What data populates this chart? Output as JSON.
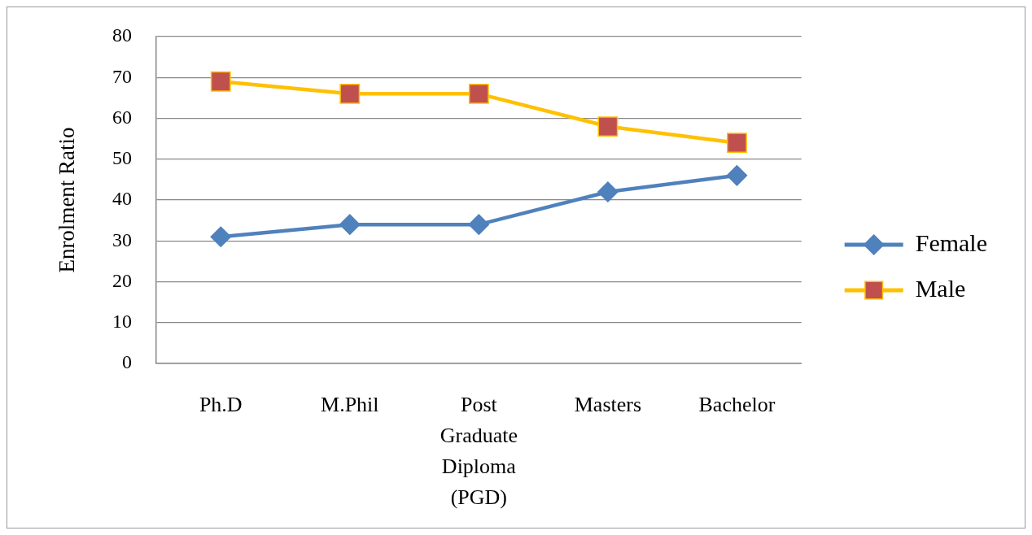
{
  "chart_data": {
    "type": "line",
    "categories": [
      "Ph.D",
      "M.Phil",
      "Post Graduate Diploma (PGD)",
      "Masters",
      "Bachelor"
    ],
    "ylabel": "Enrolment Ratio",
    "ylim": [
      0,
      80
    ],
    "yticks": [
      0,
      10,
      20,
      30,
      40,
      50,
      60,
      70,
      80
    ],
    "grid": "y",
    "legend": "right",
    "series": [
      {
        "name": "Female",
        "color": "#4f81bd",
        "marker": "diamond",
        "values": [
          31,
          34,
          34,
          42,
          46
        ]
      },
      {
        "name": "Male",
        "color": "#ffc000",
        "colors": [
          "#c0504d",
          "#c0504d",
          "#c0504d",
          "#c0504d",
          "#c0504d"
        ],
        "marker": "square",
        "values": [
          69,
          66,
          66,
          58,
          54
        ]
      }
    ]
  }
}
